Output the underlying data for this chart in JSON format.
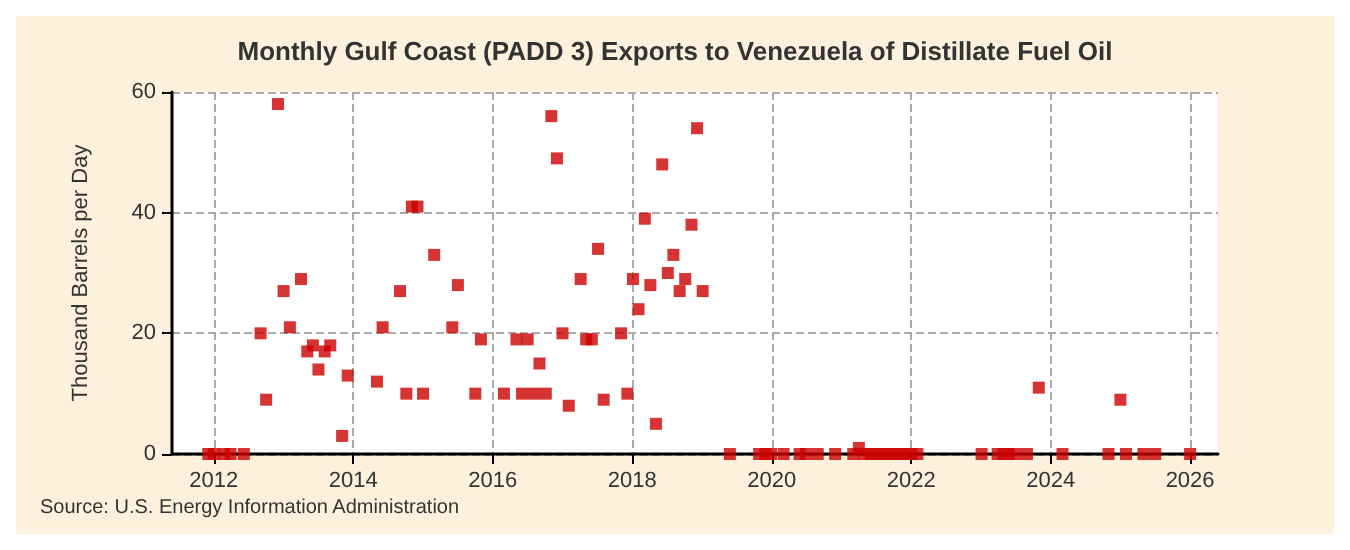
{
  "chart_data": {
    "type": "scatter",
    "title": "Monthly Gulf Coast (PADD 3) Exports to Venezuela of Distillate Fuel Oil",
    "ylabel": "Thousand Barrels per Day",
    "annotations": [
      "Source: U.S. Energy Information Administration"
    ],
    "x": [
      2011.92,
      2012.0,
      2012.15,
      2012.24,
      2012.43,
      2012.67,
      2012.75,
      2012.92,
      2013.0,
      2013.09,
      2013.25,
      2013.34,
      2013.42,
      2013.5,
      2013.59,
      2013.67,
      2013.84,
      2013.92,
      2014.34,
      2014.42,
      2014.67,
      2014.76,
      2014.84,
      2014.92,
      2015.0,
      2015.16,
      2015.42,
      2015.5,
      2015.75,
      2015.83,
      2016.16,
      2016.34,
      2016.42,
      2016.5,
      2016.59,
      2016.67,
      2016.76,
      2016.84,
      2016.92,
      2017.0,
      2017.09,
      2017.26,
      2017.34,
      2017.42,
      2017.51,
      2017.59,
      2017.84,
      2017.93,
      2018.01,
      2018.09,
      2018.18,
      2018.26,
      2018.34,
      2018.43,
      2018.51,
      2018.59,
      2018.68,
      2018.76,
      2018.85,
      2018.93,
      2019.01,
      2019.4,
      2019.82,
      2019.91,
      2019.99,
      2020.17,
      2020.4,
      2020.49,
      2020.66,
      2020.91,
      2021.17,
      2021.25,
      2021.33,
      2021.42,
      2021.5,
      2021.58,
      2021.67,
      2021.75,
      2021.84,
      2021.92,
      2022.0,
      2022.09,
      2023.01,
      2023.24,
      2023.32,
      2023.4,
      2023.49,
      2023.66,
      2023.83,
      2024.17,
      2024.83,
      2025.0,
      2025.08,
      2025.33,
      2025.5,
      2026.0
    ],
    "values": [
      0,
      0,
      0,
      0,
      0,
      20,
      9,
      58,
      27,
      21,
      29,
      17,
      18,
      14,
      17,
      18,
      3,
      13,
      12,
      21,
      27,
      10,
      41,
      41,
      10,
      33,
      21,
      28,
      10,
      19,
      10,
      19,
      10,
      19,
      10,
      15,
      10,
      56,
      49,
      20,
      8,
      29,
      19,
      19,
      34,
      9,
      20,
      10,
      29,
      24,
      39,
      28,
      5,
      48,
      30,
      33,
      27,
      29,
      38,
      54,
      27,
      0,
      0,
      0,
      0,
      0,
      0,
      0,
      0,
      0,
      0,
      1,
      0,
      0,
      0,
      0,
      0,
      0,
      0,
      0,
      0,
      0,
      0,
      0,
      0,
      0,
      0,
      0,
      11,
      0,
      0,
      9,
      0,
      0,
      0,
      0
    ],
    "color": "#cc0000",
    "marker": "square",
    "grid": true,
    "xlim": [
      2011.4,
      2026.4
    ],
    "xticks": [
      2012,
      2014,
      2016,
      2018,
      2020,
      2022,
      2024,
      2026
    ],
    "ylim": [
      0,
      60
    ],
    "yticks": [
      0,
      20,
      40,
      60
    ]
  }
}
